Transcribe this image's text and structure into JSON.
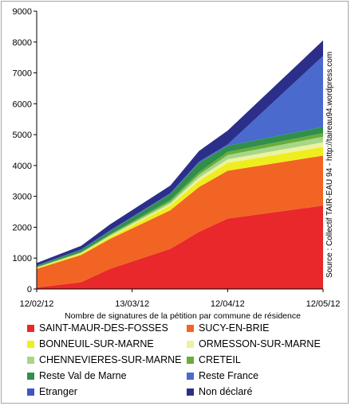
{
  "chart_data": {
    "type": "area",
    "stacked": true,
    "x": [
      "2012-02-12",
      "2012-02-26",
      "2012-03-06",
      "2012-03-25",
      "2012-04-03",
      "2012-04-12",
      "2012-05-12"
    ],
    "xticks": [
      "12/02/12",
      "13/03/12",
      "12/04/12",
      "12/05/12"
    ],
    "ylim": [
      0,
      9000
    ],
    "yticks": [
      "0",
      "1000",
      "2000",
      "3000",
      "4000",
      "5000",
      "6000",
      "7000",
      "8000",
      "9000"
    ],
    "xlabel": "Nombre de signatures de la pétition par commune de résidence",
    "source": "Source : Collectif TAIR-EAU 94 - http://taireau94.wordpress.com",
    "legend_position": "bottom",
    "grid": false,
    "series": [
      {
        "name": "SAINT-MAUR-DES-FOSSES",
        "color": "#e8282a",
        "values": [
          50,
          220,
          650,
          1300,
          1850,
          2280,
          2700
        ]
      },
      {
        "name": "SUCY-EN-BRIE",
        "color": "#f26424",
        "values": [
          600,
          880,
          970,
          1250,
          1450,
          1550,
          1620
        ]
      },
      {
        "name": "BONNEUIL-SUR-MARNE",
        "color": "#eeee1e",
        "values": [
          30,
          40,
          60,
          150,
          200,
          250,
          280
        ]
      },
      {
        "name": "ORMESSON-SUR-MARNE",
        "color": "#eef2a0",
        "values": [
          10,
          20,
          30,
          60,
          100,
          120,
          150
        ]
      },
      {
        "name": "CHENNEVIERES-SUR-MARNE",
        "color": "#a6d786",
        "values": [
          10,
          20,
          30,
          60,
          100,
          140,
          180
        ]
      },
      {
        "name": "CRETEIL",
        "color": "#6aac3c",
        "values": [
          10,
          20,
          30,
          60,
          80,
          100,
          120
        ]
      },
      {
        "name": "Reste Val de Marne",
        "color": "#30904a",
        "values": [
          40,
          70,
          100,
          200,
          300,
          200,
          200
        ]
      },
      {
        "name": "Reste France",
        "color": "#4a6acd",
        "values": [
          10,
          10,
          20,
          20,
          40,
          40,
          2300
        ]
      },
      {
        "name": "Etranger",
        "color": "#3f55c5",
        "values": [
          0,
          0,
          0,
          0,
          0,
          0,
          0
        ]
      },
      {
        "name": "Non déclaré",
        "color": "#2b2f8a",
        "values": [
          80,
          120,
          200,
          250,
          350,
          450,
          500
        ]
      }
    ]
  }
}
